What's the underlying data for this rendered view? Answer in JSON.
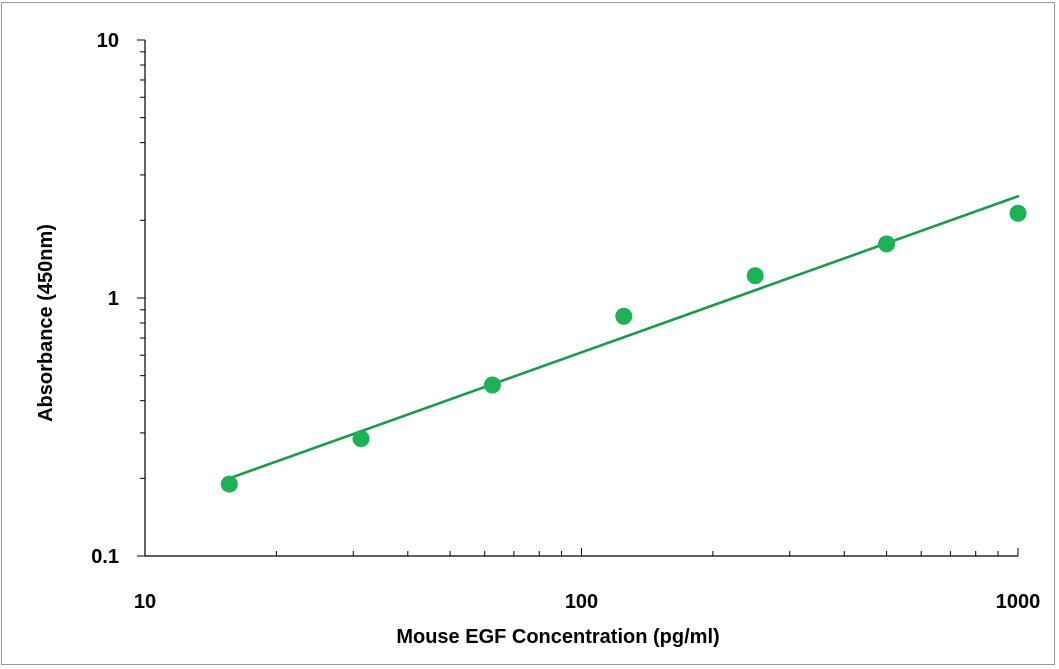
{
  "chart_data": {
    "type": "scatter",
    "title": "",
    "xlabel": "Mouse EGF Concentration (pg/ml)",
    "ylabel": "Absorbance (450nm)",
    "xscale": "log",
    "yscale": "log",
    "xlim": [
      10,
      1000
    ],
    "ylim": [
      0.1,
      10
    ],
    "x_ticks": [
      "10",
      "100",
      "1000"
    ],
    "y_ticks": [
      "0.1",
      "1",
      "10"
    ],
    "grid": false,
    "legend": "none",
    "series": [
      {
        "type": "scatter",
        "x": [
          15.6,
          31.25,
          62.5,
          125,
          250,
          500,
          1000
        ],
        "y": [
          0.19,
          0.285,
          0.46,
          0.85,
          1.22,
          1.62,
          2.13
        ]
      },
      {
        "type": "line",
        "x": [
          15.6,
          1000
        ],
        "y": [
          0.2,
          2.48
        ]
      }
    ],
    "marker_color": "#1db155",
    "line_color": "#1a9a4a"
  }
}
